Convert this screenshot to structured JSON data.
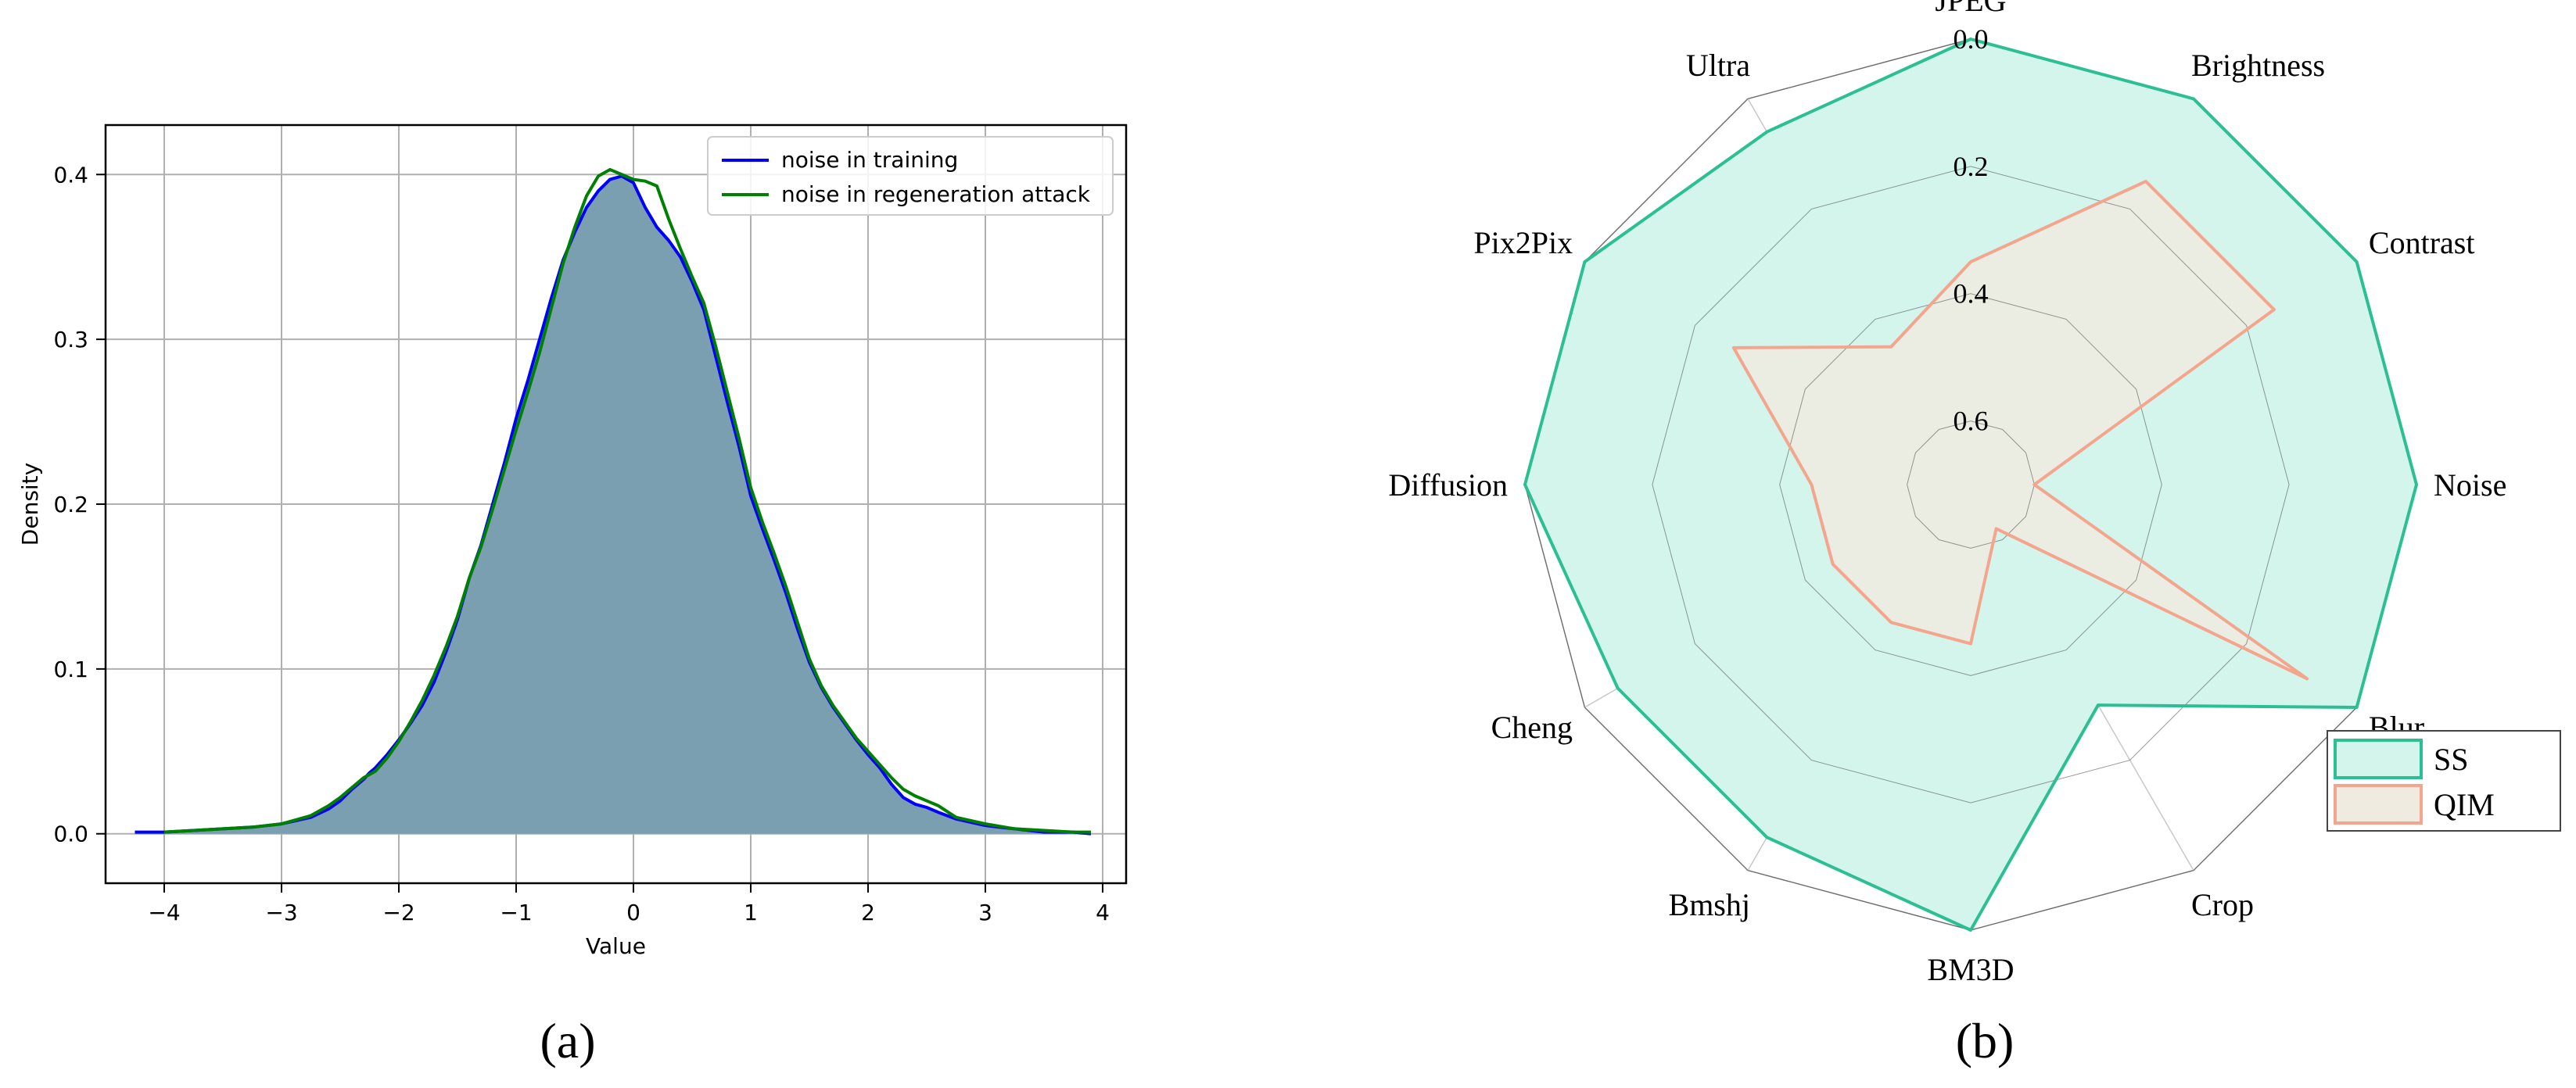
{
  "panels": [
    {
      "caption": "(a)"
    },
    {
      "caption": "(b)"
    }
  ],
  "chart_data": [
    {
      "type": "area",
      "xlabel": "Value",
      "ylabel": "Density",
      "xlim": [
        -4.5,
        4.2
      ],
      "ylim": [
        -0.03,
        0.43
      ],
      "xticks": [
        -4,
        -3,
        -2,
        -1,
        0,
        1,
        2,
        3,
        4
      ],
      "xtick_labels": [
        "−4",
        "−3",
        "−2",
        "−1",
        "0",
        "1",
        "2",
        "3",
        "4"
      ],
      "yticks": [
        0.0,
        0.1,
        0.2,
        0.3,
        0.4
      ],
      "ytick_labels": [
        "0.0",
        "0.1",
        "0.2",
        "0.3",
        "0.4"
      ],
      "grid": true,
      "legend_position": "top-right",
      "fill_color": "#7a9fb0",
      "series": [
        {
          "name": "noise in training",
          "color": "#0000ff",
          "x": [
            -4.25,
            -4.0,
            -3.75,
            -3.5,
            -3.25,
            -3.0,
            -2.75,
            -2.6,
            -2.5,
            -2.4,
            -2.3,
            -2.25,
            -2.2,
            -2.1,
            -2.0,
            -1.9,
            -1.8,
            -1.7,
            -1.6,
            -1.5,
            -1.4,
            -1.3,
            -1.2,
            -1.1,
            -1.0,
            -0.9,
            -0.8,
            -0.7,
            -0.6,
            -0.5,
            -0.4,
            -0.3,
            -0.2,
            -0.1,
            0.0,
            0.1,
            0.2,
            0.3,
            0.4,
            0.5,
            0.6,
            0.7,
            0.8,
            0.9,
            1.0,
            1.1,
            1.2,
            1.3,
            1.4,
            1.5,
            1.6,
            1.7,
            1.8,
            1.9,
            2.0,
            2.1,
            2.2,
            2.3,
            2.4,
            2.5,
            2.6,
            2.75,
            3.0,
            3.25,
            3.5,
            3.75,
            3.9
          ],
          "y": [
            0.001,
            0.001,
            0.002,
            0.003,
            0.004,
            0.006,
            0.01,
            0.015,
            0.02,
            0.027,
            0.033,
            0.037,
            0.04,
            0.048,
            0.057,
            0.067,
            0.078,
            0.092,
            0.11,
            0.13,
            0.155,
            0.175,
            0.2,
            0.225,
            0.252,
            0.275,
            0.3,
            0.325,
            0.348,
            0.365,
            0.38,
            0.39,
            0.397,
            0.399,
            0.395,
            0.38,
            0.368,
            0.36,
            0.35,
            0.335,
            0.318,
            0.29,
            0.262,
            0.235,
            0.205,
            0.185,
            0.166,
            0.146,
            0.124,
            0.104,
            0.089,
            0.077,
            0.067,
            0.057,
            0.048,
            0.04,
            0.03,
            0.022,
            0.018,
            0.016,
            0.013,
            0.009,
            0.005,
            0.003,
            0.001,
            0.001,
            0.0
          ]
        },
        {
          "name": "noise in regeneration attack",
          "color": "#008000",
          "x": [
            -4.0,
            -3.75,
            -3.5,
            -3.25,
            -3.0,
            -2.75,
            -2.6,
            -2.5,
            -2.4,
            -2.3,
            -2.25,
            -2.2,
            -2.1,
            -2.0,
            -1.9,
            -1.8,
            -1.7,
            -1.6,
            -1.5,
            -1.4,
            -1.3,
            -1.2,
            -1.1,
            -1.0,
            -0.9,
            -0.8,
            -0.7,
            -0.6,
            -0.5,
            -0.4,
            -0.3,
            -0.2,
            -0.1,
            0.0,
            0.1,
            0.2,
            0.3,
            0.4,
            0.5,
            0.6,
            0.7,
            0.8,
            0.9,
            1.0,
            1.1,
            1.2,
            1.3,
            1.4,
            1.5,
            1.6,
            1.7,
            1.8,
            1.9,
            2.0,
            2.1,
            2.2,
            2.3,
            2.4,
            2.5,
            2.6,
            2.75,
            3.0,
            3.25,
            3.5,
            3.75,
            3.9
          ],
          "y": [
            0.001,
            0.002,
            0.003,
            0.004,
            0.006,
            0.011,
            0.017,
            0.022,
            0.028,
            0.034,
            0.036,
            0.038,
            0.046,
            0.056,
            0.068,
            0.081,
            0.096,
            0.113,
            0.132,
            0.155,
            0.174,
            0.197,
            0.221,
            0.245,
            0.268,
            0.292,
            0.319,
            0.346,
            0.368,
            0.387,
            0.399,
            0.403,
            0.4,
            0.397,
            0.396,
            0.393,
            0.373,
            0.355,
            0.338,
            0.322,
            0.296,
            0.268,
            0.24,
            0.21,
            0.189,
            0.17,
            0.15,
            0.128,
            0.106,
            0.09,
            0.078,
            0.068,
            0.058,
            0.05,
            0.042,
            0.034,
            0.027,
            0.023,
            0.02,
            0.017,
            0.01,
            0.006,
            0.003,
            0.002,
            0.001,
            0.001
          ]
        }
      ]
    },
    {
      "type": "radar",
      "axes": [
        "JPEG",
        "Brightness",
        "Contrast",
        "Noise",
        "Blur",
        "Crop",
        "BM3D",
        "Bmshj",
        "Cheng",
        "Diffusion",
        "Pix2Pix",
        "Ultra"
      ],
      "r_ticks": [
        0.0,
        0.2,
        0.4,
        0.6
      ],
      "r_tick_labels": [
        "0.0",
        "0.2",
        "0.4",
        "0.6"
      ],
      "r_range": [
        0.0,
        0.7
      ],
      "r_axis_inverted": true,
      "grid": true,
      "legend_position": "right",
      "series": [
        {
          "name": "SS",
          "color": "#2bbf93",
          "fill": "#d3f5ec",
          "values": [
            0.0,
            0.0,
            0.0,
            0.0,
            0.0,
            0.3,
            0.0,
            0.06,
            0.06,
            0.0,
            0.0,
            0.06
          ]
        },
        {
          "name": "QIM",
          "color": "#f4a58e",
          "fill": "#f0ebe1",
          "values": [
            0.35,
            0.15,
            0.15,
            0.6,
            0.09,
            0.62,
            0.45,
            0.45,
            0.45,
            0.45,
            0.27,
            0.45
          ]
        }
      ]
    }
  ]
}
